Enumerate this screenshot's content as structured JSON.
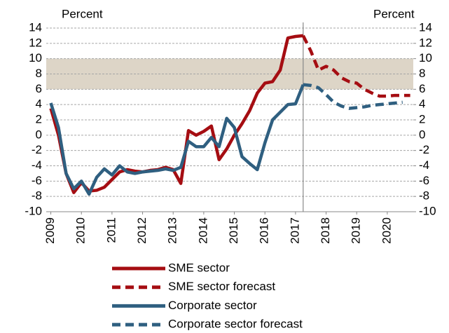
{
  "chart_data": {
    "type": "line",
    "y_label_left": "Percent",
    "y_label_right": "Percent",
    "ylim": [
      -10,
      14
    ],
    "yticks": [
      -10,
      -8,
      -6,
      -4,
      -2,
      0,
      2,
      4,
      6,
      8,
      10,
      12,
      14
    ],
    "y2lim": [
      -10,
      14
    ],
    "y2ticks": [
      -10,
      -8,
      -6,
      -4,
      -2,
      0,
      2,
      4,
      6,
      8,
      10,
      12,
      14
    ],
    "xlim": [
      2008.85,
      2020.85
    ],
    "xticks": [
      2009,
      2010,
      2011,
      2012,
      2013,
      2014,
      2015,
      2016,
      2017,
      2018,
      2019,
      2020
    ],
    "grid": true,
    "band": [
      6,
      10
    ],
    "band_color": "#ddd5c7",
    "vline": 2017.25,
    "legend": "bottom",
    "series": [
      {
        "name": "SME sector",
        "color": "#a50d12",
        "dashed": false,
        "x": [
          2009,
          2009.25,
          2009.5,
          2009.75,
          2010,
          2010.25,
          2010.5,
          2010.75,
          2011,
          2011.25,
          2011.5,
          2011.75,
          2012,
          2012.25,
          2012.5,
          2012.75,
          2013,
          2013.25,
          2013.5,
          2013.75,
          2014,
          2014.25,
          2014.5,
          2014.75,
          2015,
          2015.25,
          2015.5,
          2015.75,
          2016,
          2016.25,
          2016.5,
          2016.75,
          2017,
          2017.25
        ],
        "values": [
          3.5,
          0,
          -5,
          -7.5,
          -6.2,
          -7.3,
          -7.2,
          -6.8,
          -5.8,
          -4.8,
          -4.5,
          -4.7,
          -4.8,
          -4.6,
          -4.5,
          -4.2,
          -4.5,
          -6.3,
          0.6,
          0,
          0.5,
          1.2,
          -3.2,
          -1.8,
          0,
          1.5,
          3.2,
          5.5,
          6.8,
          7,
          8.5,
          12.7,
          12.9,
          13
        ]
      },
      {
        "name": "SME sector forecast",
        "color": "#a50d12",
        "dashed": true,
        "x": [
          2017.25,
          2017.5,
          2017.75,
          2018,
          2018.25,
          2018.5,
          2018.75,
          2019,
          2019.25,
          2019.5,
          2019.75,
          2020,
          2020.25,
          2020.5,
          2020.75
        ],
        "values": [
          13,
          11,
          8.5,
          9,
          8.5,
          7.5,
          7,
          6.8,
          6,
          5.5,
          5.1,
          5.1,
          5.2,
          5.2,
          5.2
        ]
      },
      {
        "name": "Corporate sector",
        "color": "#2f5f80",
        "dashed": false,
        "x": [
          2009,
          2009.25,
          2009.5,
          2009.75,
          2010,
          2010.25,
          2010.5,
          2010.75,
          2011,
          2011.25,
          2011.5,
          2011.75,
          2012,
          2012.25,
          2012.5,
          2012.75,
          2013,
          2013.25,
          2013.5,
          2013.75,
          2014,
          2014.25,
          2014.5,
          2014.75,
          2015,
          2015.25,
          2015.5,
          2015.75,
          2016,
          2016.25,
          2016.5,
          2016.75,
          2017,
          2017.25
        ],
        "values": [
          4.2,
          1,
          -5,
          -7,
          -6,
          -7.7,
          -5.5,
          -4.4,
          -5.2,
          -4,
          -4.8,
          -5,
          -4.8,
          -4.7,
          -4.6,
          -4.4,
          -4.6,
          -4.2,
          -0.8,
          -1.5,
          -1.5,
          -0.3,
          -1.5,
          2.2,
          1,
          -2.8,
          -3.7,
          -4.5,
          -1,
          2,
          3,
          4,
          4.1,
          6.6
        ]
      },
      {
        "name": "Corporate sector forecast",
        "color": "#2f5f80",
        "dashed": true,
        "x": [
          2017.25,
          2017.5,
          2017.75,
          2018,
          2018.25,
          2018.5,
          2018.75,
          2019,
          2019.25,
          2019.5,
          2019.75,
          2020,
          2020.25,
          2020.5
        ],
        "values": [
          6.6,
          6.5,
          6.2,
          5.3,
          4.3,
          3.8,
          3.5,
          3.6,
          3.7,
          3.9,
          4,
          4.1,
          4.2,
          4.3
        ]
      }
    ]
  }
}
